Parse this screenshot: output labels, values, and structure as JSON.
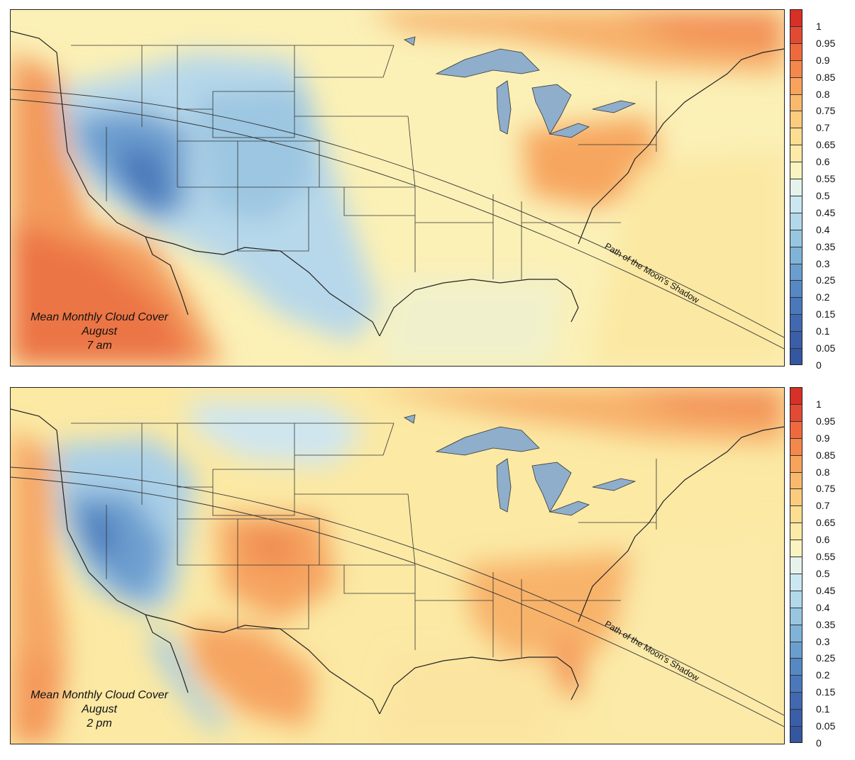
{
  "panels": [
    {
      "id": "am",
      "title_lines": [
        "Mean Monthly Cloud Cover",
        "August",
        "7 am"
      ],
      "path_label": "Path of the Moon's Shadow"
    },
    {
      "id": "pm",
      "title_lines": [
        "Mean Monthly Cloud Cover",
        "August",
        "2 pm"
      ],
      "path_label": "Path of the Moon's Shadow"
    }
  ],
  "colorbar": {
    "ticks": [
      "1",
      "0.95",
      "0.9",
      "0.85",
      "0.8",
      "0.75",
      "0.7",
      "0.65",
      "0.6",
      "0.55",
      "0.5",
      "0.45",
      "0.4",
      "0.35",
      "0.3",
      "0.25",
      "0.2",
      "0.15",
      "0.1",
      "0.05",
      "0"
    ],
    "colors_top_to_bottom": [
      "#d73027",
      "#e34a33",
      "#ee6a3e",
      "#f4874b",
      "#f7a35c",
      "#f9b96c",
      "#fbcc7e",
      "#fcdd92",
      "#fdeaa8",
      "#fbf3c0",
      "#e6f3ec",
      "#cbe7f1",
      "#b2d8ea",
      "#98c6e1",
      "#80b3d8",
      "#6a9ece",
      "#5689c4",
      "#4a78ba",
      "#4169b1",
      "#3a5ea8",
      "#3556a0"
    ]
  },
  "legend_colors": {
    "water_lakes": "#8eaecb",
    "ocean_pacific": "#f3a062",
    "clear_blue": "#4a78ba",
    "cloudy_orange": "#f7a35c"
  }
}
